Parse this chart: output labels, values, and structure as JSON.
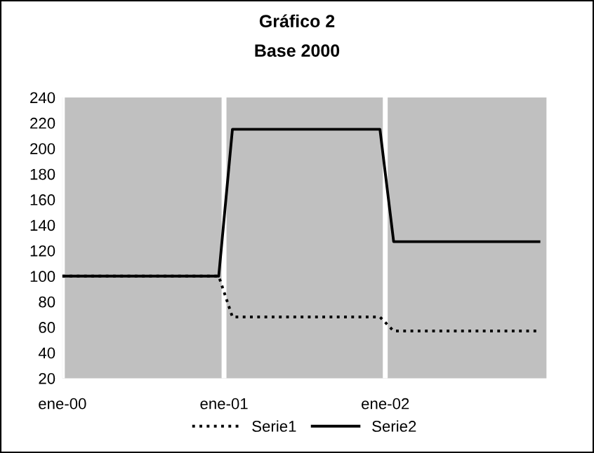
{
  "chart_data": {
    "type": "line",
    "title": "Gráfico 2",
    "subtitle": "Base 2000",
    "series": [
      {
        "name": "Serie1",
        "color": "#000000",
        "line_style": "dotted",
        "x": [
          "2000-01-01",
          "2000-12-20",
          "2001-01-20",
          "2001-12-20",
          "2002-01-20",
          "2002-12-15"
        ],
        "values": [
          100,
          100,
          68,
          68,
          57,
          57
        ]
      },
      {
        "name": "Serie2",
        "color": "#000000",
        "line_style": "solid",
        "x": [
          "2000-01-01",
          "2000-12-20",
          "2001-01-20",
          "2001-12-20",
          "2002-01-20",
          "2002-12-15"
        ],
        "values": [
          100,
          100,
          215,
          215,
          127,
          127
        ]
      }
    ],
    "xlim": [
      "2000-01-01",
      "2003-01-01"
    ],
    "xticks": [
      {
        "value": "2000-01-01",
        "label": "ene-00"
      },
      {
        "value": "2001-01-01",
        "label": "ene-01"
      },
      {
        "value": "2002-01-01",
        "label": "ene-02"
      }
    ],
    "ylim": [
      20,
      240
    ],
    "yticks": [
      20,
      40,
      60,
      80,
      100,
      120,
      140,
      160,
      180,
      200,
      220,
      240
    ],
    "grid": "x",
    "legend": "bottom"
  }
}
